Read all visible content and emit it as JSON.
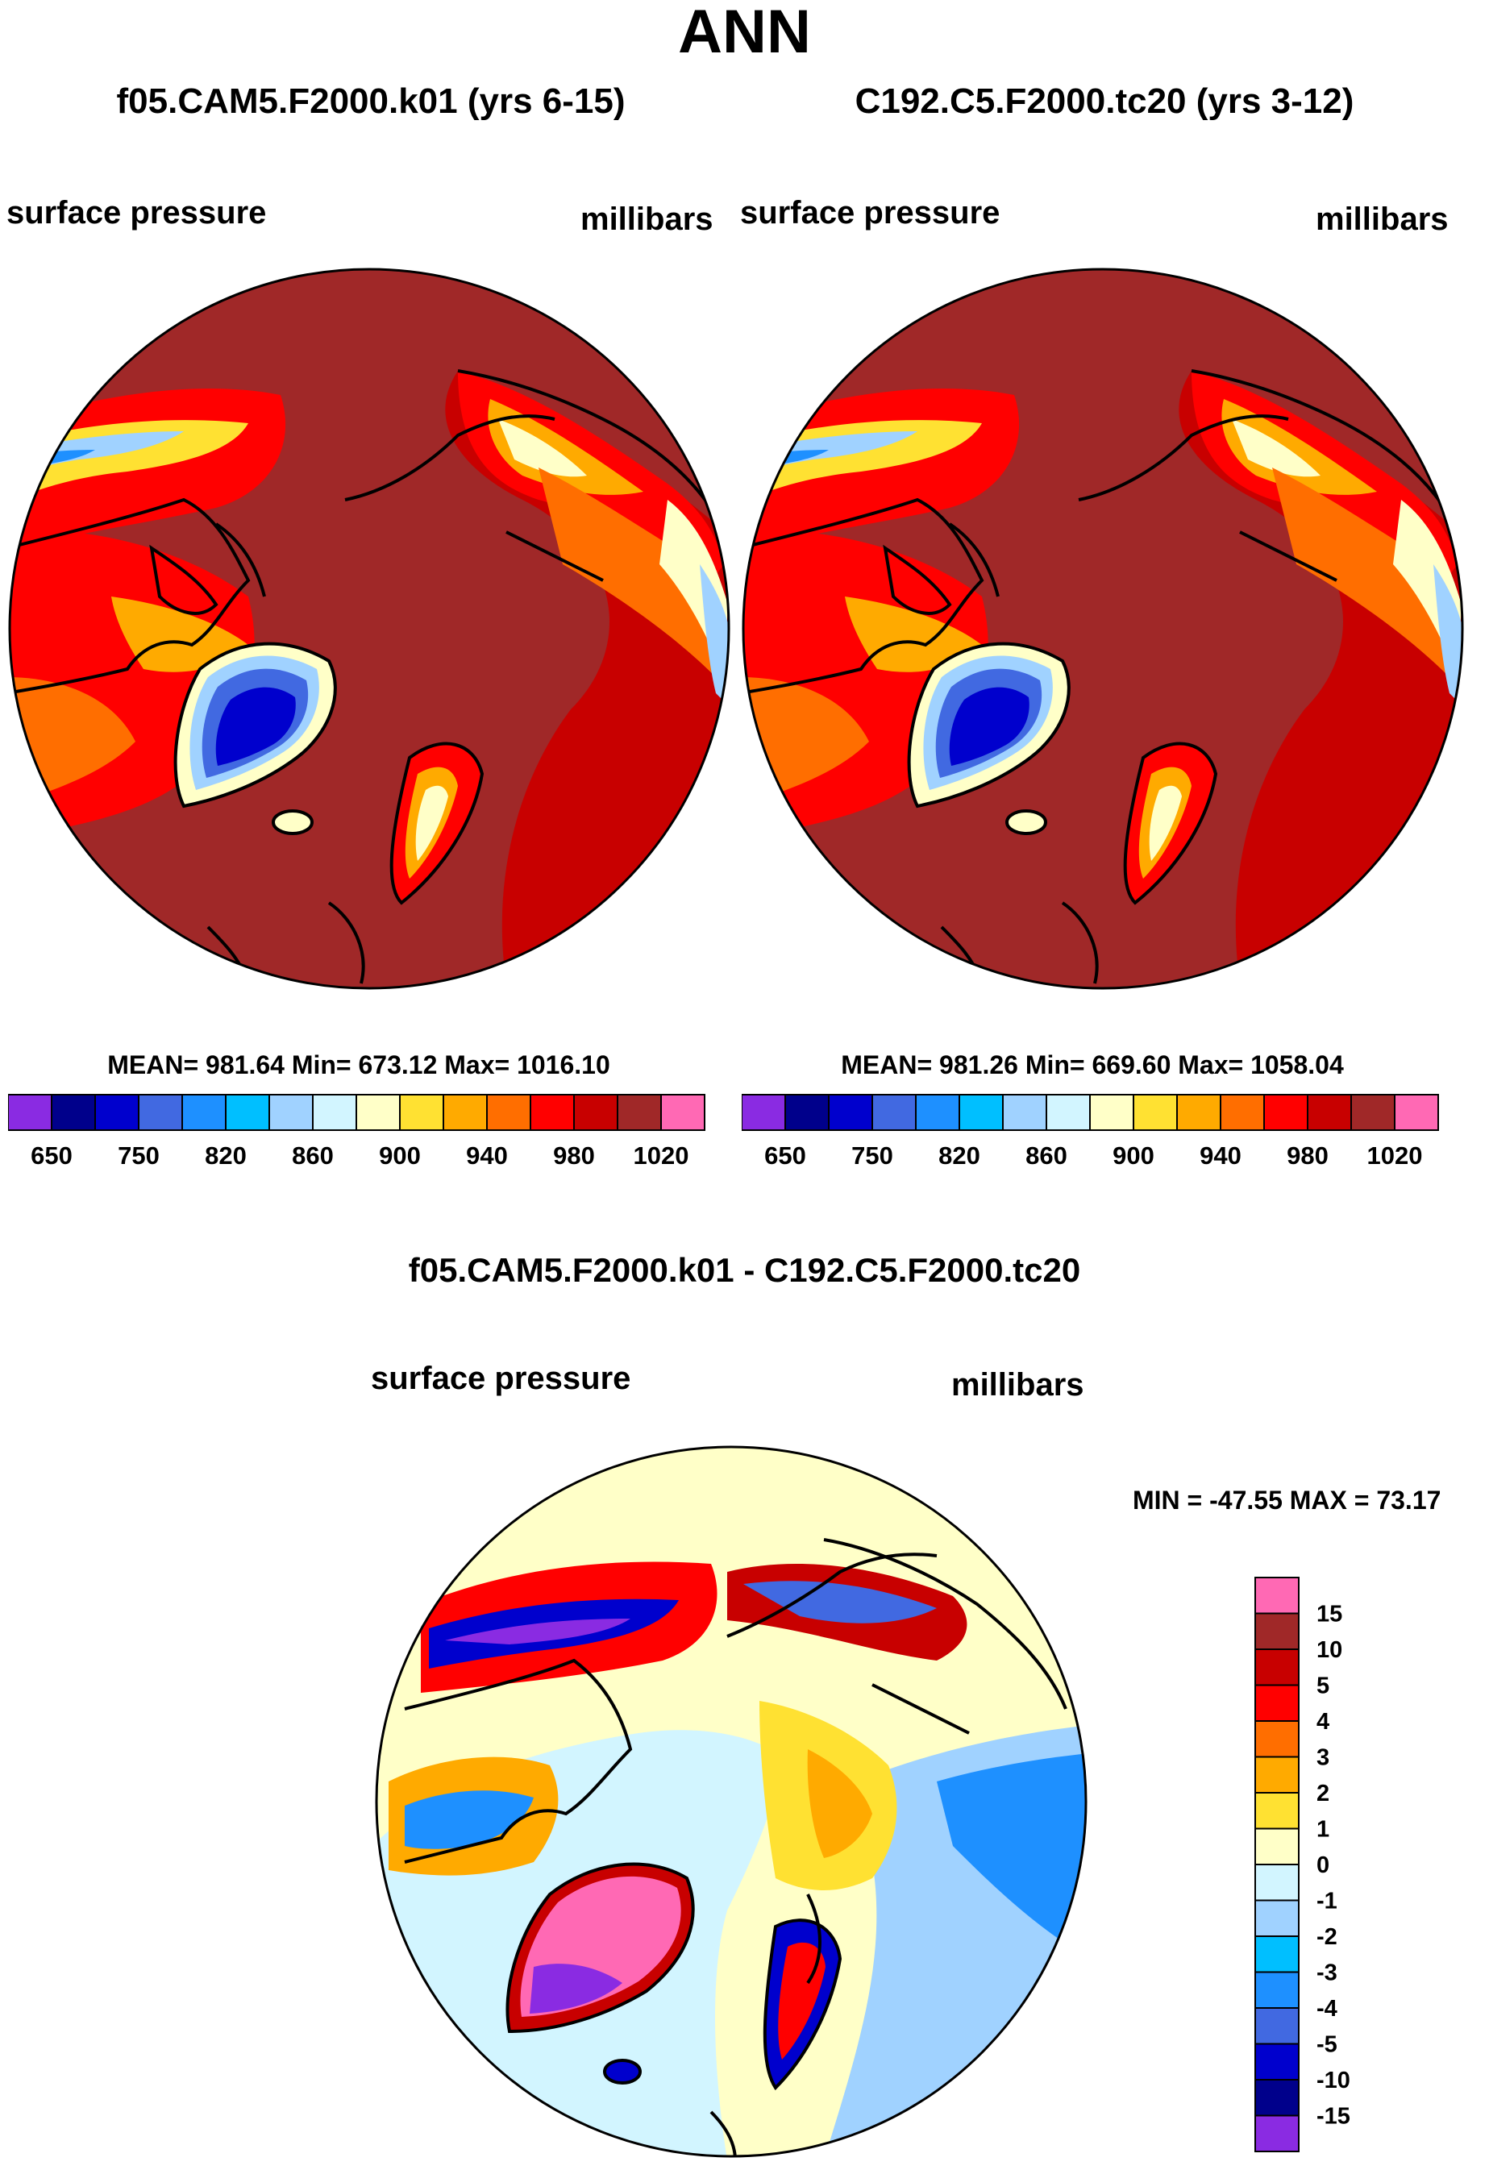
{
  "figure_title": "ANN",
  "panels": [
    {
      "title": "f05.CAM5.F2000.k01 (yrs 6-15)",
      "left_label": "surface pressure",
      "right_label": "millibars",
      "stats": "MEAN= 981.64  Min= 673.12  Max= 1016.10"
    },
    {
      "title": "C192.C5.F2000.tc20 (yrs 3-12)",
      "left_label": "surface pressure",
      "right_label": "millibars",
      "stats": "MEAN= 981.26  Min= 669.60  Max= 1058.04"
    }
  ],
  "diff_panel": {
    "title": "f05.CAM5.F2000.k01 - C192.C5.F2000.tc20",
    "left_label": "surface pressure",
    "right_label": "millibars",
    "stats": "MIN = -47.55 MAX =  73.17"
  },
  "colors": {
    "abs_scale": [
      "#8a2be2",
      "#00008b",
      "#0000cd",
      "#4169e1",
      "#1e90ff",
      "#00bfff",
      "#a0d2ff",
      "#d2f5ff",
      "#ffffc8",
      "#ffe132",
      "#ffaa00",
      "#ff6e00",
      "#ff0000",
      "#c80000",
      "#a02828",
      "#ff69b4"
    ],
    "diff_scale": [
      "#8a2be2",
      "#00008b",
      "#0000cd",
      "#4169e1",
      "#1e90ff",
      "#00bfff",
      "#a0d2ff",
      "#d2f5ff",
      "#ffffc8",
      "#ffe132",
      "#ffaa00",
      "#ff6e00",
      "#ff0000",
      "#c80000",
      "#a02828",
      "#ff69b4"
    ],
    "map_background": "#a02828",
    "diff_background": "#ffffc8"
  },
  "chart_data": [
    {
      "type": "heatmap",
      "title": "f05.CAM5.F2000.k01 (yrs 6-15)",
      "variable": "surface pressure",
      "units": "millibars",
      "projection": "north polar stereographic",
      "levels": [
        "650",
        "750",
        "820",
        "860",
        "900",
        "940",
        "980",
        "1020"
      ],
      "mean": 981.64,
      "min": 673.12,
      "max": 1016.1
    },
    {
      "type": "heatmap",
      "title": "C192.C5.F2000.tc20 (yrs 3-12)",
      "variable": "surface pressure",
      "units": "millibars",
      "projection": "north polar stereographic",
      "levels": [
        "650",
        "750",
        "820",
        "860",
        "900",
        "940",
        "980",
        "1020"
      ],
      "mean": 981.26,
      "min": 669.6,
      "max": 1058.04
    },
    {
      "type": "heatmap",
      "title": "f05.CAM5.F2000.k01 - C192.C5.F2000.tc20",
      "variable": "surface pressure",
      "units": "millibars",
      "projection": "north polar stereographic",
      "levels": [
        "15",
        "10",
        "5",
        "4",
        "3",
        "2",
        "1",
        "0",
        "-1",
        "-2",
        "-3",
        "-4",
        "-5",
        "-10",
        "-15"
      ],
      "min": -47.55,
      "max": 73.17
    }
  ]
}
